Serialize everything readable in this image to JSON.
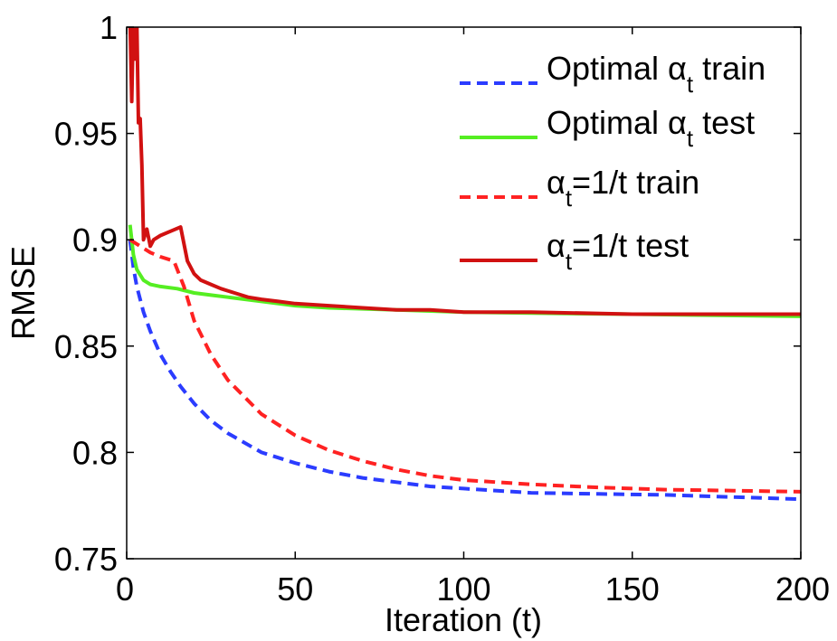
{
  "chart_data": {
    "type": "line",
    "title": "",
    "xlabel": "Iteration (t)",
    "ylabel": "RMSE",
    "xlim": [
      0,
      200
    ],
    "ylim": [
      0.75,
      1.0
    ],
    "xticks": [
      0,
      50,
      100,
      150,
      200
    ],
    "yticks": [
      0.75,
      0.8,
      0.85,
      0.9,
      0.95,
      1.0
    ],
    "xtick_labels": [
      "0",
      "50",
      "100",
      "150",
      "200"
    ],
    "ytick_labels": [
      "0.75",
      "0.8",
      "0.85",
      "0.9",
      "0.95",
      "1"
    ],
    "legend_position": "top-right",
    "series": [
      {
        "name": "Optimal αt train",
        "legend": {
          "pre": "Optimal α",
          "sub": "t",
          "post": " train"
        },
        "color": "#2b3cff",
        "style": "dashed",
        "x": [
          1,
          2,
          3,
          5,
          7,
          10,
          13,
          16,
          20,
          25,
          30,
          40,
          50,
          60,
          70,
          80,
          90,
          100,
          120,
          140,
          160,
          180,
          200
        ],
        "y": [
          0.9,
          0.887,
          0.878,
          0.866,
          0.857,
          0.846,
          0.838,
          0.831,
          0.823,
          0.815,
          0.809,
          0.8,
          0.795,
          0.791,
          0.788,
          0.786,
          0.784,
          0.783,
          0.781,
          0.7805,
          0.78,
          0.779,
          0.778
        ]
      },
      {
        "name": "Optimal αt test",
        "legend": {
          "pre": "Optimal α",
          "sub": "t",
          "post": " test"
        },
        "color": "#55ee22",
        "style": "solid",
        "x": [
          1,
          2,
          3,
          5,
          7,
          10,
          15,
          20,
          25,
          30,
          40,
          50,
          60,
          80,
          100,
          120,
          150,
          200
        ],
        "y": [
          0.907,
          0.893,
          0.886,
          0.881,
          0.879,
          0.878,
          0.877,
          0.875,
          0.874,
          0.873,
          0.871,
          0.869,
          0.868,
          0.867,
          0.866,
          0.8655,
          0.865,
          0.864
        ]
      },
      {
        "name": "αt=1/t train",
        "legend": {
          "pre": "α",
          "sub": "t",
          "post": "=1/t train"
        },
        "color": "#ff2222",
        "style": "dashed",
        "x": [
          1,
          3,
          5,
          7,
          10,
          14,
          17,
          20,
          25,
          30,
          40,
          50,
          60,
          70,
          80,
          90,
          100,
          120,
          140,
          160,
          180,
          200
        ],
        "y": [
          0.9,
          0.898,
          0.896,
          0.894,
          0.892,
          0.89,
          0.878,
          0.862,
          0.846,
          0.834,
          0.818,
          0.808,
          0.801,
          0.796,
          0.792,
          0.789,
          0.787,
          0.785,
          0.7835,
          0.7825,
          0.782,
          0.7815
        ]
      },
      {
        "name": "αt=1/t test",
        "legend": {
          "pre": "α",
          "sub": "t",
          "post": "=1/t test"
        },
        "color": "#d11111",
        "style": "solid",
        "x": [
          1,
          1.5,
          2,
          2.5,
          3,
          3.5,
          4,
          4.5,
          5,
          6,
          7,
          8,
          10,
          13,
          16,
          18,
          20,
          22,
          25,
          28,
          32,
          36,
          40,
          45,
          50,
          60,
          70,
          80,
          90,
          100,
          120,
          150,
          200
        ],
        "y": [
          1.003,
          0.965,
          1.003,
          0.985,
          1.003,
          0.955,
          0.957,
          0.935,
          0.9,
          0.905,
          0.897,
          0.9,
          0.902,
          0.904,
          0.906,
          0.89,
          0.884,
          0.881,
          0.879,
          0.877,
          0.875,
          0.873,
          0.872,
          0.871,
          0.87,
          0.869,
          0.868,
          0.867,
          0.867,
          0.866,
          0.866,
          0.865,
          0.865
        ]
      }
    ]
  }
}
